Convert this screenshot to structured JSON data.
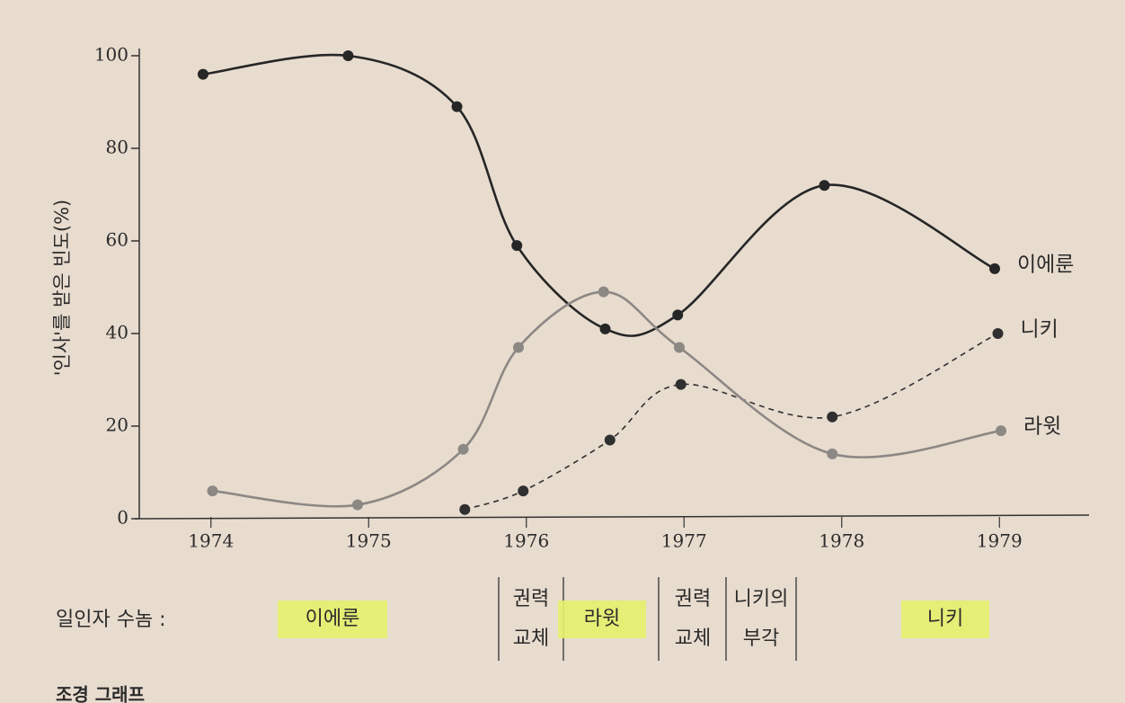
{
  "chart_data": {
    "type": "line",
    "y_label": "'인사'를 받은 빈도(%)",
    "xlim": [
      1974,
      1980
    ],
    "xticks": [
      {
        "value": 1974.5,
        "label": "1974"
      },
      {
        "value": 1975.5,
        "label": "1975"
      },
      {
        "value": 1976.5,
        "label": "1976"
      },
      {
        "value": 1977.5,
        "label": "1977"
      },
      {
        "value": 1978.5,
        "label": "1978"
      },
      {
        "value": 1979.5,
        "label": "1979"
      }
    ],
    "ylim": [
      0,
      100
    ],
    "yticks": [
      0,
      20,
      40,
      60,
      80,
      100
    ],
    "grid": false,
    "series": [
      {
        "name": "이에룬",
        "color": "#262626",
        "dashed": false,
        "x": [
          1974.45,
          1975.37,
          1976.06,
          1976.44,
          1977.0,
          1977.46,
          1978.39,
          1979.47
        ],
        "values": [
          96,
          100,
          89,
          59,
          41,
          44,
          72,
          54
        ]
      },
      {
        "name": "니키",
        "color": "#303030",
        "dashed": true,
        "x": [
          1976.11,
          1976.48,
          1977.03,
          1977.48,
          1978.44,
          1979.49
        ],
        "values": [
          2,
          6,
          17,
          29,
          22,
          40
        ]
      },
      {
        "name": "라윗",
        "color": "#8c8884",
        "dashed": false,
        "x": [
          1974.51,
          1975.43,
          1976.1,
          1976.45,
          1976.99,
          1977.47,
          1978.44,
          1979.51
        ],
        "values": [
          6,
          3,
          15,
          37,
          49,
          37,
          14,
          19
        ]
      }
    ],
    "regime_label": "일인자 수놈 :",
    "regimes": [
      {
        "text": [
          "이에룬"
        ],
        "highlight": true
      },
      {
        "text": [
          "권력",
          "교체"
        ],
        "highlight": false
      },
      {
        "text": [
          "라윗"
        ],
        "highlight": true
      },
      {
        "text": [
          "권력",
          "교체"
        ],
        "highlight": false
      },
      {
        "text": [
          "니키의",
          "부각"
        ],
        "highlight": false
      },
      {
        "text": [
          "니키"
        ],
        "highlight": true
      }
    ],
    "caption": "조경 그래프"
  }
}
